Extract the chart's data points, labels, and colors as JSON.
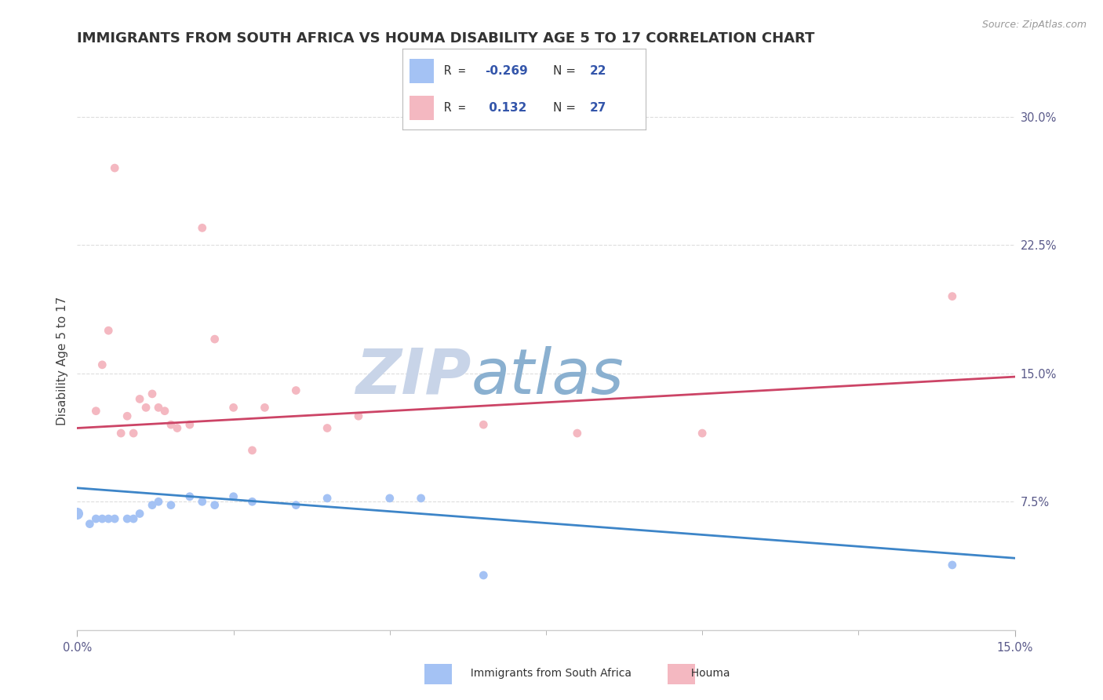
{
  "title": "IMMIGRANTS FROM SOUTH AFRICA VS HOUMA DISABILITY AGE 5 TO 17 CORRELATION CHART",
  "source": "Source: ZipAtlas.com",
  "ylabel": "Disability Age 5 to 17",
  "ylabel_right_ticks": [
    "7.5%",
    "15.0%",
    "22.5%",
    "30.0%"
  ],
  "ylabel_right_vals": [
    0.075,
    0.15,
    0.225,
    0.3
  ],
  "xmin": 0.0,
  "xmax": 0.15,
  "ymin": 0.0,
  "ymax": 0.315,
  "watermark_zip": "ZIP",
  "watermark_atlas": "atlas",
  "blue_color": "#a4c2f4",
  "pink_color": "#f4b8c1",
  "blue_line_color": "#3d85c8",
  "pink_line_color": "#cc4466",
  "blue_scatter": [
    [
      0.0,
      0.068
    ],
    [
      0.002,
      0.062
    ],
    [
      0.003,
      0.065
    ],
    [
      0.004,
      0.065
    ],
    [
      0.005,
      0.065
    ],
    [
      0.006,
      0.065
    ],
    [
      0.008,
      0.065
    ],
    [
      0.009,
      0.065
    ],
    [
      0.01,
      0.068
    ],
    [
      0.012,
      0.073
    ],
    [
      0.013,
      0.075
    ],
    [
      0.015,
      0.073
    ],
    [
      0.018,
      0.078
    ],
    [
      0.02,
      0.075
    ],
    [
      0.022,
      0.073
    ],
    [
      0.025,
      0.078
    ],
    [
      0.028,
      0.075
    ],
    [
      0.035,
      0.073
    ],
    [
      0.04,
      0.077
    ],
    [
      0.05,
      0.077
    ],
    [
      0.055,
      0.077
    ],
    [
      0.065,
      0.032
    ],
    [
      0.14,
      0.038
    ]
  ],
  "pink_scatter": [
    [
      0.003,
      0.128
    ],
    [
      0.004,
      0.155
    ],
    [
      0.005,
      0.175
    ],
    [
      0.006,
      0.27
    ],
    [
      0.007,
      0.115
    ],
    [
      0.008,
      0.125
    ],
    [
      0.009,
      0.115
    ],
    [
      0.01,
      0.135
    ],
    [
      0.011,
      0.13
    ],
    [
      0.012,
      0.138
    ],
    [
      0.013,
      0.13
    ],
    [
      0.014,
      0.128
    ],
    [
      0.015,
      0.12
    ],
    [
      0.016,
      0.118
    ],
    [
      0.018,
      0.12
    ],
    [
      0.02,
      0.235
    ],
    [
      0.022,
      0.17
    ],
    [
      0.025,
      0.13
    ],
    [
      0.028,
      0.105
    ],
    [
      0.03,
      0.13
    ],
    [
      0.035,
      0.14
    ],
    [
      0.04,
      0.118
    ],
    [
      0.045,
      0.125
    ],
    [
      0.065,
      0.12
    ],
    [
      0.08,
      0.115
    ],
    [
      0.1,
      0.115
    ],
    [
      0.14,
      0.195
    ]
  ],
  "blue_line_x": [
    0.0,
    0.15
  ],
  "blue_line_y": [
    0.083,
    0.042
  ],
  "pink_line_x": [
    0.0,
    0.15
  ],
  "pink_line_y": [
    0.118,
    0.148
  ],
  "grid_color": "#dddddd",
  "background_color": "#ffffff",
  "title_fontsize": 13,
  "axis_fontsize": 11,
  "tick_fontsize": 10.5,
  "watermark_fontsize_zip": 58,
  "watermark_fontsize_atlas": 58,
  "watermark_color_zip": "#c8d4e8",
  "watermark_color_atlas": "#8ab0d0"
}
